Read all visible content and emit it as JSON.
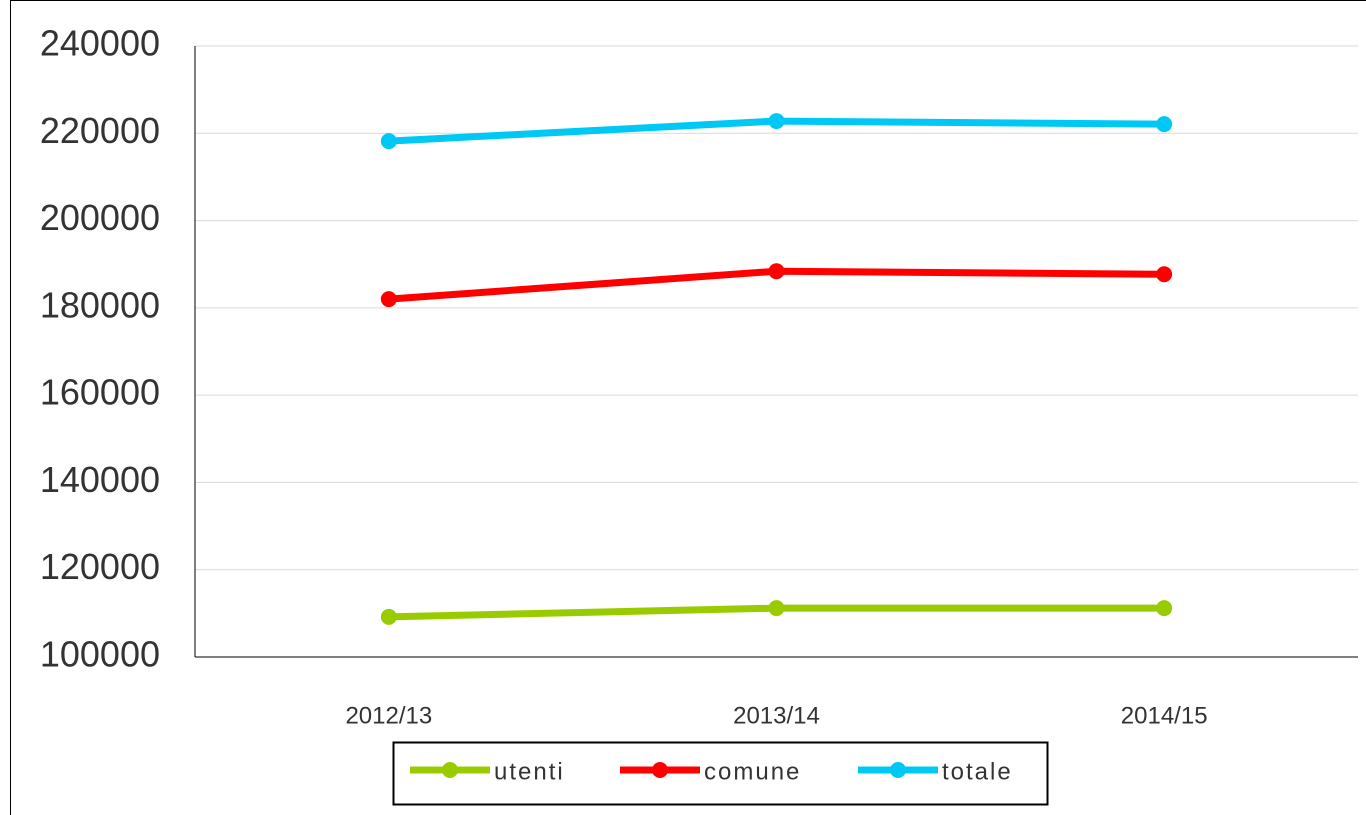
{
  "chart_data": {
    "type": "line",
    "categories": [
      "2012/13",
      "2013/14",
      "2014/15"
    ],
    "series": [
      {
        "name": "utenti",
        "color": "#99cc00",
        "values": [
          109200,
          111200,
          111200
        ]
      },
      {
        "name": "comune",
        "color": "#ff0000",
        "values": [
          182000,
          188400,
          187700
        ]
      },
      {
        "name": "totale",
        "color": "#00c8f5",
        "values": [
          218200,
          222800,
          222100
        ]
      }
    ],
    "ylim": [
      100000,
      240000
    ],
    "yticks": [
      100000,
      120000,
      140000,
      160000,
      180000,
      200000,
      220000,
      240000
    ],
    "grid": true,
    "legend": "bottom"
  }
}
